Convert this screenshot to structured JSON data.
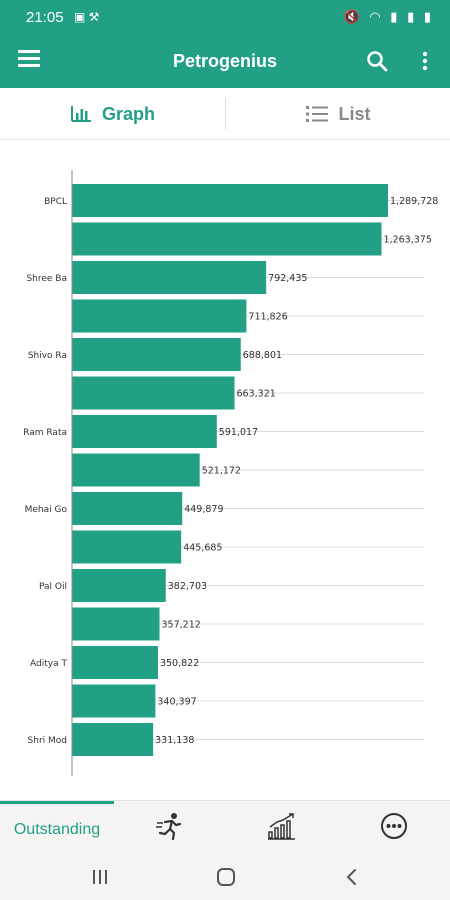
{
  "status": {
    "time": "21:05",
    "left_icons": "▣ ⚒",
    "right_icons": "🔇 ◠ ▮ ▮ ▮"
  },
  "app_bar": {
    "title": "Petrogenius"
  },
  "tabs": [
    {
      "label": "Graph"
    },
    {
      "label": "List"
    }
  ],
  "accent_color": "#22a086",
  "chart_data": {
    "type": "bar",
    "orientation": "horizontal",
    "categories": [
      "BPCL",
      "",
      "Shree Ba",
      "",
      "Shivo Ra",
      "",
      "Ram Rata",
      "",
      "Mehai Go",
      "",
      "Pal Oil",
      "",
      "Aditya T",
      "",
      "Shri Mod"
    ],
    "values": [
      1289728,
      1263375,
      792435,
      711826,
      688801,
      663321,
      591017,
      521172,
      449879,
      445685,
      382703,
      357212,
      350822,
      340397,
      331138
    ],
    "value_labels": [
      "1,289,728",
      "1,263,375",
      "792,435",
      "711,826",
      "688,801",
      "663,321",
      "591,017",
      "521,172",
      "449,879",
      "445,685",
      "382,703",
      "357,212",
      "350,822",
      "340,397",
      "331,138"
    ],
    "color": "#22a086",
    "grid": true,
    "xlim": [
      0,
      1289728
    ]
  },
  "bottom_nav": {
    "outstanding_label": "Outstanding"
  }
}
